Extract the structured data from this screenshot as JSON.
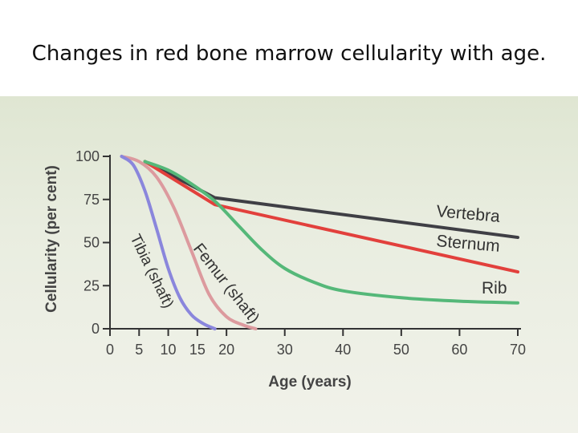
{
  "slide": {
    "title": "Changes in red bone marrow cellularity with age."
  },
  "colors": {
    "vertebra": "#3f3f45",
    "sternum": "#e2403c",
    "rib": "#55b879",
    "femur": "#dc9a9e",
    "tibia": "#8a86dc",
    "axis": "#333333",
    "background": "#e6ebdb"
  },
  "chart_data": {
    "type": "line",
    "xlabel": "Age (years)",
    "ylabel": "Cellularity (per cent)",
    "xlim": [
      0,
      70
    ],
    "ylim": [
      0,
      100
    ],
    "x_ticks": [
      0,
      5,
      10,
      15,
      20,
      30,
      40,
      50,
      60,
      70
    ],
    "y_ticks": [
      0,
      25,
      50,
      75,
      100
    ],
    "grid": false,
    "series": [
      {
        "name": "Vertebra",
        "color": "#3f3f45",
        "x": [
          6,
          18,
          70
        ],
        "y": [
          97,
          76,
          53
        ]
      },
      {
        "name": "Sternum",
        "color": "#e2403c",
        "x": [
          6,
          18,
          70
        ],
        "y": [
          97,
          72,
          33
        ]
      },
      {
        "name": "Rib",
        "color": "#55b879",
        "x": [
          6,
          10,
          14,
          18,
          22,
          26,
          30,
          35,
          40,
          50,
          60,
          70
        ],
        "y": [
          97,
          92,
          84,
          74,
          60,
          46,
          35,
          27,
          22,
          18,
          16,
          15
        ]
      },
      {
        "name": "Femur (shaft)",
        "color": "#dc9a9e",
        "x": [
          2,
          5,
          8,
          11,
          14,
          17,
          20,
          23,
          25
        ],
        "y": [
          100,
          97,
          88,
          70,
          45,
          20,
          7,
          2,
          0
        ]
      },
      {
        "name": "Tibia (shaft)",
        "color": "#8a86dc",
        "x": [
          2,
          4,
          6,
          8,
          10,
          12,
          14,
          16,
          18
        ],
        "y": [
          100,
          95,
          80,
          58,
          35,
          18,
          8,
          3,
          0
        ]
      }
    ]
  }
}
